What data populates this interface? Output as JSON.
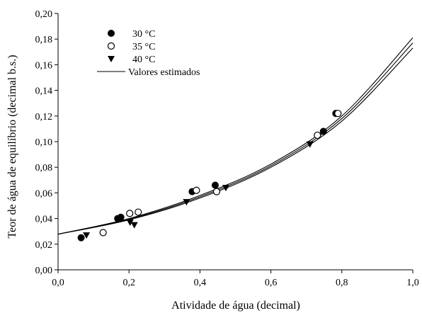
{
  "chart_data": {
    "type": "scatter",
    "title": "",
    "xlabel": "Atividade de água (decimal)",
    "ylabel": "Teor de água de equilíbrio (decimal b.s.)",
    "xlim": [
      0.0,
      1.0
    ],
    "ylim": [
      0.0,
      0.2
    ],
    "xticks": [
      "0,0",
      "0,2",
      "0,4",
      "0,6",
      "0,8",
      "1,0"
    ],
    "yticks": [
      "0,00",
      "0,02",
      "0,04",
      "0,06",
      "0,08",
      "0,10",
      "0,12",
      "0,14",
      "0,16",
      "0,18",
      "0,20"
    ],
    "grid": false,
    "legend_position": "top-left",
    "series": [
      {
        "name": "30 °C",
        "marker": "filled-circle",
        "points": [
          {
            "x": 0.065,
            "y": 0.025
          },
          {
            "x": 0.168,
            "y": 0.04
          },
          {
            "x": 0.177,
            "y": 0.041
          },
          {
            "x": 0.378,
            "y": 0.061
          },
          {
            "x": 0.443,
            "y": 0.066
          },
          {
            "x": 0.748,
            "y": 0.108
          },
          {
            "x": 0.783,
            "y": 0.122
          }
        ]
      },
      {
        "name": "35 °C",
        "marker": "open-circle",
        "points": [
          {
            "x": 0.127,
            "y": 0.029
          },
          {
            "x": 0.202,
            "y": 0.044
          },
          {
            "x": 0.226,
            "y": 0.045
          },
          {
            "x": 0.39,
            "y": 0.062
          },
          {
            "x": 0.447,
            "y": 0.061
          },
          {
            "x": 0.731,
            "y": 0.105
          },
          {
            "x": 0.789,
            "y": 0.122
          }
        ]
      },
      {
        "name": "40 °C",
        "marker": "filled-triangle-down",
        "points": [
          {
            "x": 0.08,
            "y": 0.027
          },
          {
            "x": 0.203,
            "y": 0.037
          },
          {
            "x": 0.215,
            "y": 0.035
          },
          {
            "x": 0.362,
            "y": 0.053
          },
          {
            "x": 0.473,
            "y": 0.064
          },
          {
            "x": 0.71,
            "y": 0.098
          }
        ]
      },
      {
        "name": "Valores estimados",
        "marker": "line",
        "curves": [
          {
            "x": [
              0.0,
              0.2,
              0.4,
              0.6,
              0.8,
              1.0
            ],
            "y": [
              0.0278,
              0.04,
              0.058,
              0.0825,
              0.12,
              0.181
            ]
          },
          {
            "x": [
              0.0,
              0.2,
              0.4,
              0.6,
              0.8,
              1.0
            ],
            "y": [
              0.0278,
              0.0395,
              0.057,
              0.0812,
              0.118,
              0.177
            ]
          },
          {
            "x": [
              0.0,
              0.2,
              0.4,
              0.6,
              0.8,
              1.0
            ],
            "y": [
              0.0278,
              0.039,
              0.056,
              0.08,
              0.116,
              0.173
            ]
          }
        ]
      }
    ]
  }
}
